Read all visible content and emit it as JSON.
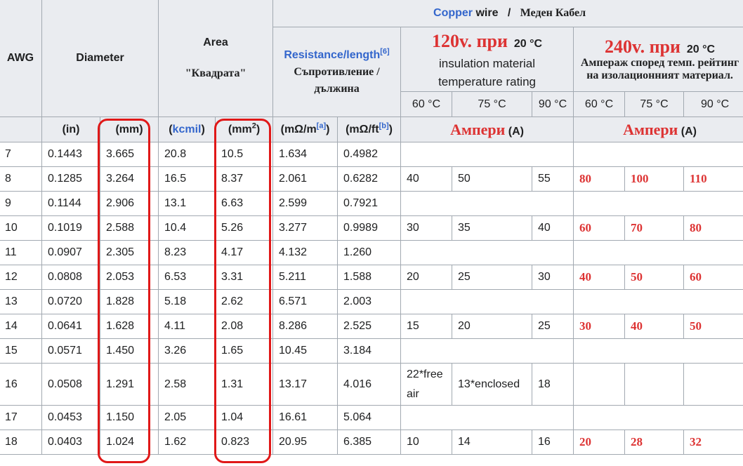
{
  "header": {
    "awg": "AWG",
    "diameter": "Diameter",
    "area": "Area",
    "area_bg": "\"Квадрата\"",
    "copper": "Copper",
    "wire": " wire",
    "slash": "/",
    "copper_bg": "Меден Кабел",
    "resistance": "Resistance/length",
    "resistance_ref": "[6]",
    "resistance_bg": "Съпротивление / дължина",
    "v120": "120v. при",
    "v120_temp": "20 °C",
    "insulation": "insulation material temperature rating",
    "v240": "240v. при",
    "v240_temp": "20 °C",
    "insulation_bg": "Ампераж според темп. рейтинг на изолационният материал.",
    "t60": "60 °C",
    "t75": "75 °C",
    "t90": "90 °C",
    "unit_in": "(in)",
    "unit_mm": "(mm)",
    "unit_kcmil_open": "(",
    "unit_kcmil": "kcmil",
    "unit_kcmil_close": ")",
    "unit_mm2": "(mm",
    "unit_mm2_sup": "2",
    "unit_mm2_close": ")",
    "unit_mohm_m": "(mΩ/m",
    "unit_ref_a": "[a]",
    "unit_mohm_ft": "(mΩ/ft",
    "unit_ref_b": "[b]",
    "amperes_bg": "Ампери",
    "amperes_unit": " (A)"
  },
  "rows": [
    {
      "awg": "7",
      "in": "0.1443",
      "mm": "3.665",
      "kcmil": "20.8",
      "mm2": "10.5",
      "ohm_m": "1.634",
      "ohm_ft": "0.4982"
    },
    {
      "awg": "8",
      "in": "0.1285",
      "mm": "3.264",
      "kcmil": "16.5",
      "mm2": "8.37",
      "ohm_m": "2.061",
      "ohm_ft": "0.6282",
      "a60": "40",
      "a75": "50",
      "a90": "55",
      "b60": "80",
      "b75": "100",
      "b90": "110"
    },
    {
      "awg": "9",
      "in": "0.1144",
      "mm": "2.906",
      "kcmil": "13.1",
      "mm2": "6.63",
      "ohm_m": "2.599",
      "ohm_ft": "0.7921"
    },
    {
      "awg": "10",
      "in": "0.1019",
      "mm": "2.588",
      "kcmil": "10.4",
      "mm2": "5.26",
      "ohm_m": "3.277",
      "ohm_ft": "0.9989",
      "a60": "30",
      "a75": "35",
      "a90": "40",
      "b60": "60",
      "b75": "70",
      "b90": "80"
    },
    {
      "awg": "11",
      "in": "0.0907",
      "mm": "2.305",
      "kcmil": "8.23",
      "mm2": "4.17",
      "ohm_m": "4.132",
      "ohm_ft": "1.260"
    },
    {
      "awg": "12",
      "in": "0.0808",
      "mm": "2.053",
      "kcmil": "6.53",
      "mm2": "3.31",
      "ohm_m": "5.211",
      "ohm_ft": "1.588",
      "a60": "20",
      "a75": "25",
      "a90": "30",
      "b60": "40",
      "b75": "50",
      "b90": "60"
    },
    {
      "awg": "13",
      "in": "0.0720",
      "mm": "1.828",
      "kcmil": "5.18",
      "mm2": "2.62",
      "ohm_m": "6.571",
      "ohm_ft": "2.003"
    },
    {
      "awg": "14",
      "in": "0.0641",
      "mm": "1.628",
      "kcmil": "4.11",
      "mm2": "2.08",
      "ohm_m": "8.286",
      "ohm_ft": "2.525",
      "a60": "15",
      "a75": "20",
      "a90": "25",
      "b60": "30",
      "b75": "40",
      "b90": "50"
    },
    {
      "awg": "15",
      "in": "0.0571",
      "mm": "1.450",
      "kcmil": "3.26",
      "mm2": "1.65",
      "ohm_m": "10.45",
      "ohm_ft": "3.184"
    },
    {
      "awg": "16",
      "in": "0.0508",
      "mm": "1.291",
      "kcmil": "2.58",
      "mm2": "1.31",
      "ohm_m": "13.17",
      "ohm_ft": "4.016",
      "a60": "22*free air",
      "a75": "13*enclosed",
      "a90": "18",
      "b60": "",
      "b75": "",
      "b90": ""
    },
    {
      "awg": "17",
      "in": "0.0453",
      "mm": "1.150",
      "kcmil": "2.05",
      "mm2": "1.04",
      "ohm_m": "16.61",
      "ohm_ft": "5.064"
    },
    {
      "awg": "18",
      "in": "0.0403",
      "mm": "1.024",
      "kcmil": "1.62",
      "mm2": "0.823",
      "ohm_m": "20.95",
      "ohm_ft": "6.385",
      "a60": "10",
      "a75": "14",
      "a90": "16",
      "b60": "20",
      "b75": "28",
      "b90": "32"
    }
  ],
  "colors": {
    "highlight": "#e01818",
    "link": "#3366cc",
    "amp_red": "#dd3333",
    "header_bg": "#eaecf0",
    "border": "#a2a9b1"
  }
}
